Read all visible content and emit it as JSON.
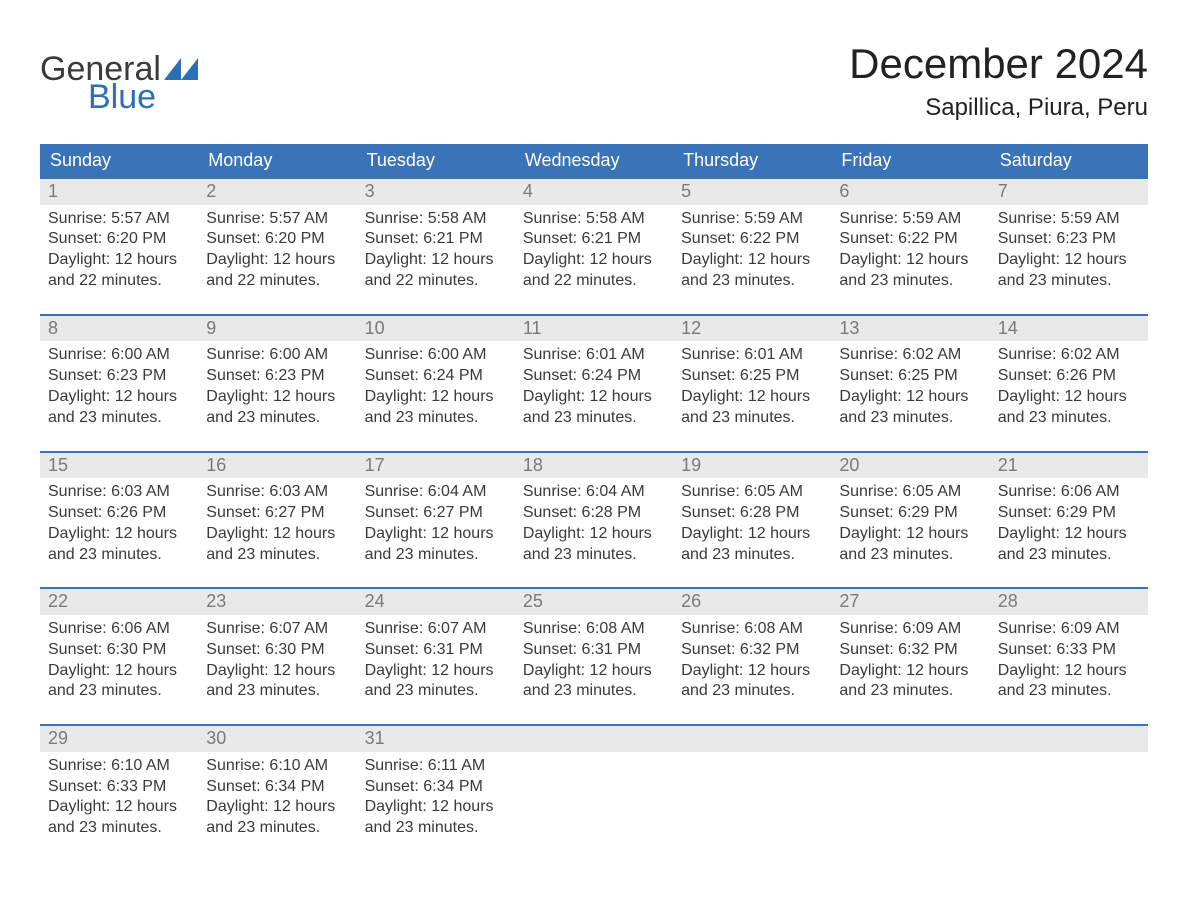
{
  "logo": {
    "word1": "General",
    "word2": "Blue"
  },
  "title": "December 2024",
  "location": "Sapillica, Piura, Peru",
  "colors": {
    "header_bg": "#3974b8",
    "header_text": "#ffffff",
    "daynum_bg": "#e9e9e9",
    "daynum_text": "#7a7a7a",
    "body_text": "#3a3a3a",
    "rule": "#3974b8",
    "logo_blue": "#2d6fb6"
  },
  "days_of_week": [
    "Sunday",
    "Monday",
    "Tuesday",
    "Wednesday",
    "Thursday",
    "Friday",
    "Saturday"
  ],
  "weeks": [
    [
      {
        "n": "1",
        "sunrise": "Sunrise: 5:57 AM",
        "sunset": "Sunset: 6:20 PM",
        "daylight1": "Daylight: 12 hours",
        "daylight2": "and 22 minutes."
      },
      {
        "n": "2",
        "sunrise": "Sunrise: 5:57 AM",
        "sunset": "Sunset: 6:20 PM",
        "daylight1": "Daylight: 12 hours",
        "daylight2": "and 22 minutes."
      },
      {
        "n": "3",
        "sunrise": "Sunrise: 5:58 AM",
        "sunset": "Sunset: 6:21 PM",
        "daylight1": "Daylight: 12 hours",
        "daylight2": "and 22 minutes."
      },
      {
        "n": "4",
        "sunrise": "Sunrise: 5:58 AM",
        "sunset": "Sunset: 6:21 PM",
        "daylight1": "Daylight: 12 hours",
        "daylight2": "and 22 minutes."
      },
      {
        "n": "5",
        "sunrise": "Sunrise: 5:59 AM",
        "sunset": "Sunset: 6:22 PM",
        "daylight1": "Daylight: 12 hours",
        "daylight2": "and 23 minutes."
      },
      {
        "n": "6",
        "sunrise": "Sunrise: 5:59 AM",
        "sunset": "Sunset: 6:22 PM",
        "daylight1": "Daylight: 12 hours",
        "daylight2": "and 23 minutes."
      },
      {
        "n": "7",
        "sunrise": "Sunrise: 5:59 AM",
        "sunset": "Sunset: 6:23 PM",
        "daylight1": "Daylight: 12 hours",
        "daylight2": "and 23 minutes."
      }
    ],
    [
      {
        "n": "8",
        "sunrise": "Sunrise: 6:00 AM",
        "sunset": "Sunset: 6:23 PM",
        "daylight1": "Daylight: 12 hours",
        "daylight2": "and 23 minutes."
      },
      {
        "n": "9",
        "sunrise": "Sunrise: 6:00 AM",
        "sunset": "Sunset: 6:23 PM",
        "daylight1": "Daylight: 12 hours",
        "daylight2": "and 23 minutes."
      },
      {
        "n": "10",
        "sunrise": "Sunrise: 6:00 AM",
        "sunset": "Sunset: 6:24 PM",
        "daylight1": "Daylight: 12 hours",
        "daylight2": "and 23 minutes."
      },
      {
        "n": "11",
        "sunrise": "Sunrise: 6:01 AM",
        "sunset": "Sunset: 6:24 PM",
        "daylight1": "Daylight: 12 hours",
        "daylight2": "and 23 minutes."
      },
      {
        "n": "12",
        "sunrise": "Sunrise: 6:01 AM",
        "sunset": "Sunset: 6:25 PM",
        "daylight1": "Daylight: 12 hours",
        "daylight2": "and 23 minutes."
      },
      {
        "n": "13",
        "sunrise": "Sunrise: 6:02 AM",
        "sunset": "Sunset: 6:25 PM",
        "daylight1": "Daylight: 12 hours",
        "daylight2": "and 23 minutes."
      },
      {
        "n": "14",
        "sunrise": "Sunrise: 6:02 AM",
        "sunset": "Sunset: 6:26 PM",
        "daylight1": "Daylight: 12 hours",
        "daylight2": "and 23 minutes."
      }
    ],
    [
      {
        "n": "15",
        "sunrise": "Sunrise: 6:03 AM",
        "sunset": "Sunset: 6:26 PM",
        "daylight1": "Daylight: 12 hours",
        "daylight2": "and 23 minutes."
      },
      {
        "n": "16",
        "sunrise": "Sunrise: 6:03 AM",
        "sunset": "Sunset: 6:27 PM",
        "daylight1": "Daylight: 12 hours",
        "daylight2": "and 23 minutes."
      },
      {
        "n": "17",
        "sunrise": "Sunrise: 6:04 AM",
        "sunset": "Sunset: 6:27 PM",
        "daylight1": "Daylight: 12 hours",
        "daylight2": "and 23 minutes."
      },
      {
        "n": "18",
        "sunrise": "Sunrise: 6:04 AM",
        "sunset": "Sunset: 6:28 PM",
        "daylight1": "Daylight: 12 hours",
        "daylight2": "and 23 minutes."
      },
      {
        "n": "19",
        "sunrise": "Sunrise: 6:05 AM",
        "sunset": "Sunset: 6:28 PM",
        "daylight1": "Daylight: 12 hours",
        "daylight2": "and 23 minutes."
      },
      {
        "n": "20",
        "sunrise": "Sunrise: 6:05 AM",
        "sunset": "Sunset: 6:29 PM",
        "daylight1": "Daylight: 12 hours",
        "daylight2": "and 23 minutes."
      },
      {
        "n": "21",
        "sunrise": "Sunrise: 6:06 AM",
        "sunset": "Sunset: 6:29 PM",
        "daylight1": "Daylight: 12 hours",
        "daylight2": "and 23 minutes."
      }
    ],
    [
      {
        "n": "22",
        "sunrise": "Sunrise: 6:06 AM",
        "sunset": "Sunset: 6:30 PM",
        "daylight1": "Daylight: 12 hours",
        "daylight2": "and 23 minutes."
      },
      {
        "n": "23",
        "sunrise": "Sunrise: 6:07 AM",
        "sunset": "Sunset: 6:30 PM",
        "daylight1": "Daylight: 12 hours",
        "daylight2": "and 23 minutes."
      },
      {
        "n": "24",
        "sunrise": "Sunrise: 6:07 AM",
        "sunset": "Sunset: 6:31 PM",
        "daylight1": "Daylight: 12 hours",
        "daylight2": "and 23 minutes."
      },
      {
        "n": "25",
        "sunrise": "Sunrise: 6:08 AM",
        "sunset": "Sunset: 6:31 PM",
        "daylight1": "Daylight: 12 hours",
        "daylight2": "and 23 minutes."
      },
      {
        "n": "26",
        "sunrise": "Sunrise: 6:08 AM",
        "sunset": "Sunset: 6:32 PM",
        "daylight1": "Daylight: 12 hours",
        "daylight2": "and 23 minutes."
      },
      {
        "n": "27",
        "sunrise": "Sunrise: 6:09 AM",
        "sunset": "Sunset: 6:32 PM",
        "daylight1": "Daylight: 12 hours",
        "daylight2": "and 23 minutes."
      },
      {
        "n": "28",
        "sunrise": "Sunrise: 6:09 AM",
        "sunset": "Sunset: 6:33 PM",
        "daylight1": "Daylight: 12 hours",
        "daylight2": "and 23 minutes."
      }
    ],
    [
      {
        "n": "29",
        "sunrise": "Sunrise: 6:10 AM",
        "sunset": "Sunset: 6:33 PM",
        "daylight1": "Daylight: 12 hours",
        "daylight2": "and 23 minutes."
      },
      {
        "n": "30",
        "sunrise": "Sunrise: 6:10 AM",
        "sunset": "Sunset: 6:34 PM",
        "daylight1": "Daylight: 12 hours",
        "daylight2": "and 23 minutes."
      },
      {
        "n": "31",
        "sunrise": "Sunrise: 6:11 AM",
        "sunset": "Sunset: 6:34 PM",
        "daylight1": "Daylight: 12 hours",
        "daylight2": "and 23 minutes."
      },
      {
        "n": "",
        "sunrise": "",
        "sunset": "",
        "daylight1": "",
        "daylight2": ""
      },
      {
        "n": "",
        "sunrise": "",
        "sunset": "",
        "daylight1": "",
        "daylight2": ""
      },
      {
        "n": "",
        "sunrise": "",
        "sunset": "",
        "daylight1": "",
        "daylight2": ""
      },
      {
        "n": "",
        "sunrise": "",
        "sunset": "",
        "daylight1": "",
        "daylight2": ""
      }
    ]
  ]
}
